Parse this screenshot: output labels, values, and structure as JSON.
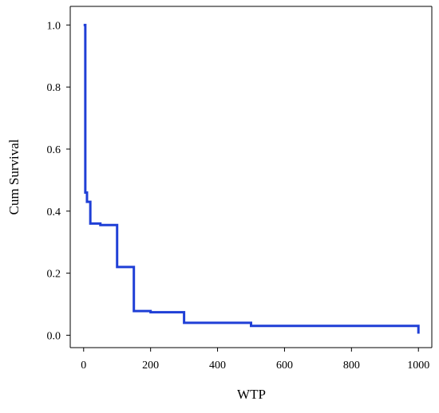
{
  "chart_data": {
    "type": "line",
    "step": true,
    "title": "",
    "xlabel": "WTP",
    "ylabel": "Cum Survival",
    "xlim": [
      -40,
      1040
    ],
    "ylim": [
      -0.04,
      1.06
    ],
    "xticks": [
      0,
      200,
      400,
      600,
      800,
      1000
    ],
    "yticks": [
      0.0,
      0.2,
      0.4,
      0.6,
      0.8,
      1.0
    ],
    "xtick_labels": [
      "0",
      "200",
      "400",
      "600",
      "800",
      "1000"
    ],
    "ytick_labels": [
      "0.0",
      "0.2",
      "0.4",
      "0.6",
      "0.8",
      "1.0"
    ],
    "grid": false,
    "series": [
      {
        "color": "#1f3fd6",
        "x": [
          0,
          5,
          10,
          20,
          50,
          100,
          150,
          200,
          300,
          500,
          1000
        ],
        "y": [
          1.0,
          0.46,
          0.43,
          0.36,
          0.355,
          0.22,
          0.078,
          0.074,
          0.04,
          0.03,
          0.017
        ],
        "end_x": 1000,
        "end_y": 0.005
      }
    ]
  }
}
